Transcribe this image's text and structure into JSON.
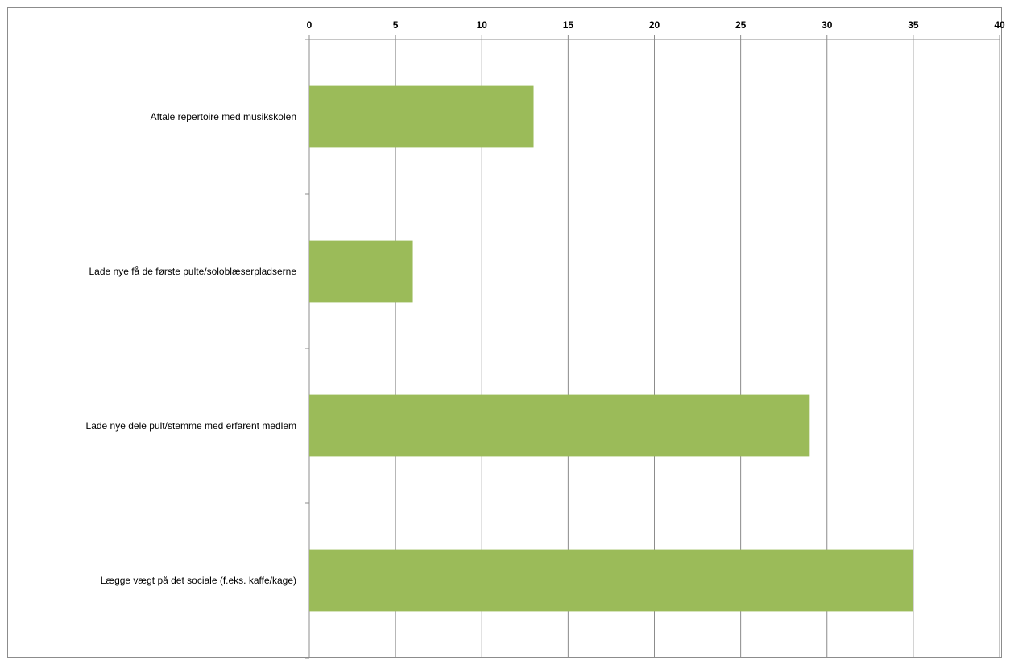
{
  "chart_data": {
    "type": "bar",
    "orientation": "horizontal",
    "categories": [
      "Aftale repertoire med musikskolen",
      "Lade nye få de første pulte/soloblæserpladserne",
      "Lade nye dele pult/stemme med erfarent medlem",
      "Lægge vægt på det sociale (f.eks. kaffe/kage)"
    ],
    "values": [
      13,
      6,
      29,
      35
    ],
    "xlim": [
      0,
      40
    ],
    "ticks": [
      "0",
      "5",
      "10",
      "15",
      "20",
      "25",
      "30",
      "35",
      "40"
    ],
    "tick_step": 5,
    "axis_position": "top",
    "grid": true,
    "legend": "none",
    "title": "",
    "xlabel": "",
    "ylabel": "",
    "colors": {
      "bar": "#9bbb59",
      "grid": "#8c8c8c",
      "axis": "#8c8c8c"
    }
  }
}
